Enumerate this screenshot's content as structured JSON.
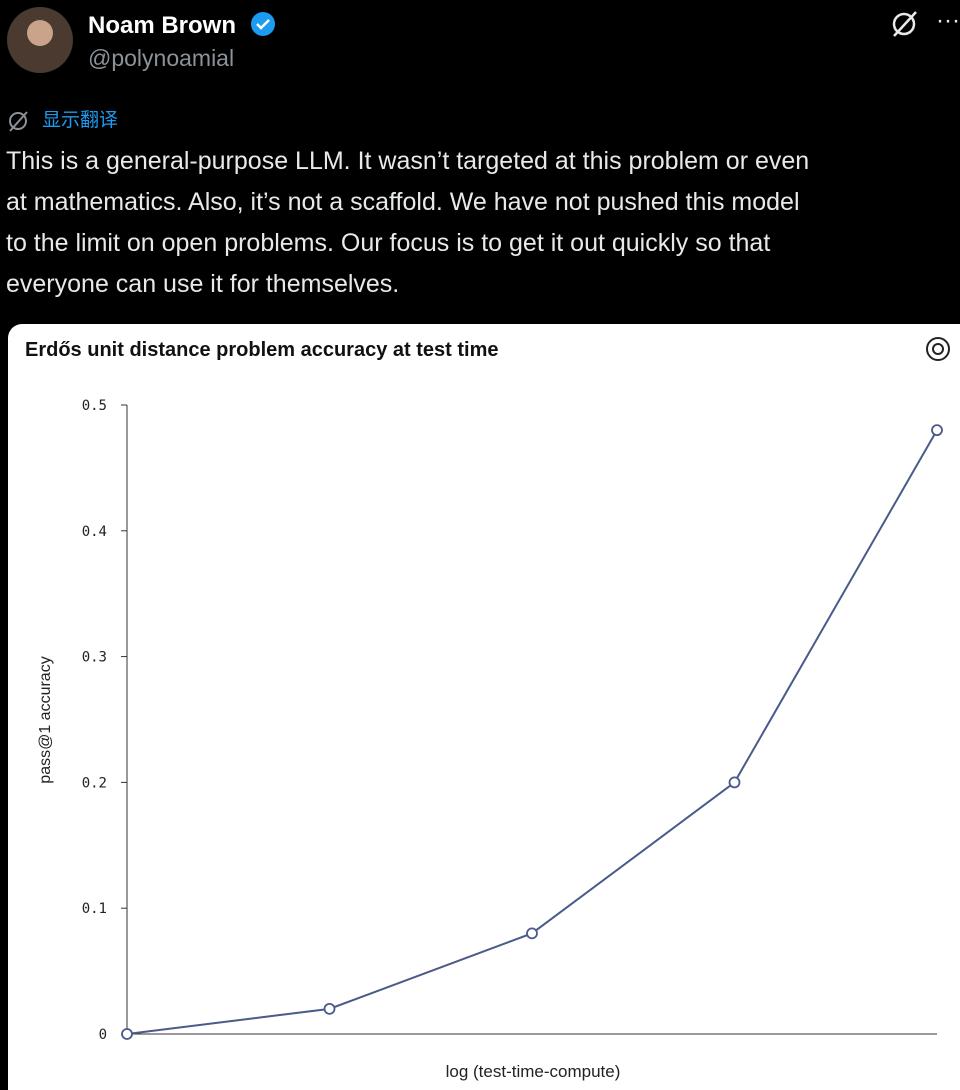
{
  "header": {
    "name": "Noam Brown",
    "handle": "@polynoamial"
  },
  "translate_label": "显示翻译",
  "body": [
    "This is a general-purpose LLM. It wasn’t targeted at this problem or even",
    "at mathematics. Also, it’s not a scaffold. We have not pushed this model",
    "to the limit on open problems. Our focus is to get it out quickly so that",
    "everyone can use it for themselves."
  ],
  "chart_data": {
    "type": "line",
    "title": "Erdős unit distance problem accuracy at test time",
    "x_label": "log (test-time-compute)",
    "y_label": "pass@1 accuracy",
    "categories": [
      null,
      null,
      null,
      null,
      null
    ],
    "values": [
      0,
      0.02,
      0.08,
      0.2,
      0.48
    ],
    "color": "#4a5a8a",
    "ylim": [
      0,
      0.5
    ],
    "yticks": [
      0,
      0.1,
      0.2,
      0.3,
      0.4,
      0.5
    ],
    "grid": false
  }
}
